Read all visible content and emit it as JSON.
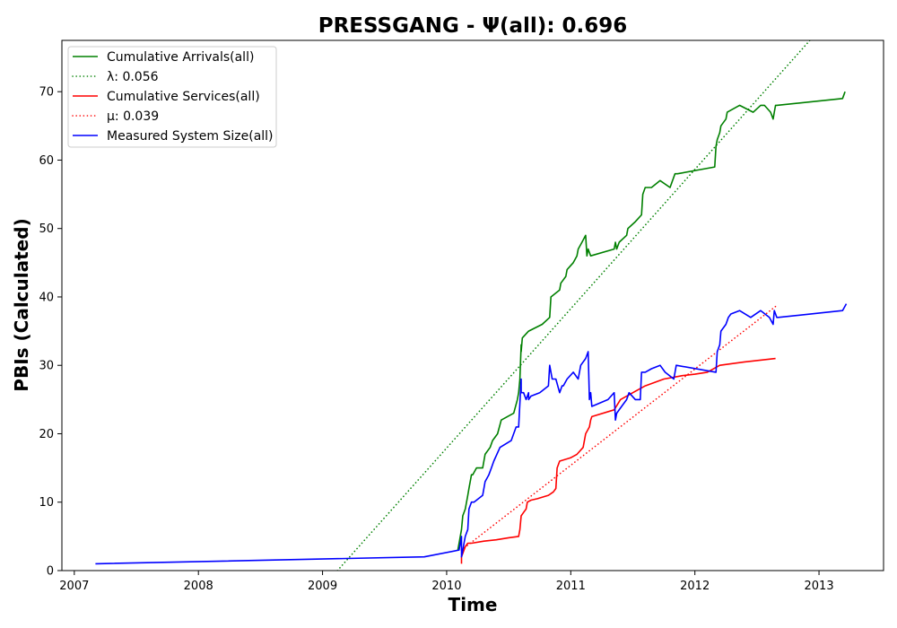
{
  "chart_data": {
    "type": "line",
    "title": "PRESSGANG -  Ψ(all): 0.696",
    "xlabel": "Time",
    "ylabel": "PBIs (Calculated)",
    "xlim": [
      2006.9,
      2013.52
    ],
    "ylim": [
      0,
      77.5
    ],
    "xticks": [
      2007,
      2008,
      2009,
      2010,
      2011,
      2012,
      2013
    ],
    "xtick_labels": [
      "2007",
      "2008",
      "2009",
      "2010",
      "2011",
      "2012",
      "2013"
    ],
    "yticks": [
      0,
      10,
      20,
      30,
      40,
      50,
      60,
      70
    ],
    "ytick_labels": [
      "0",
      "10",
      "20",
      "30",
      "40",
      "50",
      "60",
      "70"
    ],
    "grid": false,
    "legend_position": "upper-left",
    "series": [
      {
        "name": "Cumulative Arrivals(all)",
        "color": "#008000",
        "style": "solid",
        "x": [
          2010.09,
          2010.1,
          2010.12,
          2010.13,
          2010.15,
          2010.17,
          2010.18,
          2010.2,
          2010.21,
          2010.24,
          2010.29,
          2010.31,
          2010.35,
          2010.37,
          2010.41,
          2010.44,
          2010.54,
          2010.57,
          2010.58,
          2010.59,
          2010.6,
          2010.6,
          2010.61,
          2010.66,
          2010.77,
          2010.83,
          2010.84,
          2010.91,
          2010.92,
          2010.96,
          2010.97,
          2011.02,
          2011.05,
          2011.06,
          2011.09,
          2011.12,
          2011.13,
          2011.14,
          2011.16,
          2011.35,
          2011.36,
          2011.37,
          2011.39,
          2011.45,
          2011.46,
          2011.52,
          2011.57,
          2011.58,
          2011.6,
          2011.65,
          2011.72,
          2011.8,
          2011.84,
          2011.86,
          2012.16,
          2012.17,
          2012.18,
          2012.2,
          2012.21,
          2012.25,
          2012.26,
          2012.36,
          2012.47,
          2012.53,
          2012.56,
          2012.61,
          2012.63,
          2012.64,
          2012.65,
          2012.66,
          2013.19,
          2013.21
        ],
        "y": [
          3,
          4,
          6,
          8,
          9,
          11,
          12,
          14,
          14,
          15,
          15,
          17,
          18,
          19,
          20,
          22,
          23,
          25,
          26,
          28,
          33,
          32,
          34,
          35,
          36,
          37,
          40,
          41,
          42,
          43,
          44,
          45,
          46,
          47,
          48,
          49,
          46,
          47,
          46,
          47,
          48,
          47,
          48,
          49,
          50,
          51,
          52,
          55,
          56,
          56,
          57,
          56,
          58,
          58,
          59,
          62,
          63,
          64,
          65,
          66,
          67,
          68,
          67,
          68,
          68,
          67,
          66,
          67,
          68,
          68,
          69,
          70
        ]
      },
      {
        "name": "λ: 0.056",
        "color": "#008000",
        "style": "dotted",
        "x": [
          2009.12,
          2013.0
        ],
        "y": [
          0,
          79
        ]
      },
      {
        "name": "Cumulative Services(all)",
        "color": "#ff0000",
        "style": "solid",
        "x": [
          2010.12,
          2010.12,
          2010.14,
          2010.15,
          2010.17,
          2010.2,
          2010.3,
          2010.4,
          2010.5,
          2010.58,
          2010.59,
          2010.6,
          2010.62,
          2010.64,
          2010.65,
          2010.68,
          2010.73,
          2010.82,
          2010.86,
          2010.88,
          2010.89,
          2010.91,
          2011.0,
          2011.05,
          2011.1,
          2011.12,
          2011.15,
          2011.16,
          2011.17,
          2011.35,
          2011.4,
          2011.5,
          2011.6,
          2011.75,
          2011.9,
          2012.0,
          2012.1,
          2012.2,
          2012.4,
          2012.65
        ],
        "y": [
          1,
          2,
          3,
          3.5,
          4,
          4,
          4.3,
          4.5,
          4.8,
          5,
          6,
          8,
          8.5,
          9,
          10,
          10.3,
          10.5,
          11,
          11.5,
          12,
          15,
          16,
          16.5,
          17,
          18,
          20,
          21,
          22,
          22.5,
          23.5,
          25,
          26,
          27,
          28,
          28.5,
          28.7,
          29,
          30,
          30.5,
          31
        ]
      },
      {
        "name": "μ: 0.039",
        "color": "#ff0000",
        "style": "dotted",
        "x": [
          2010.12,
          2012.65
        ],
        "y": [
          3,
          38.6
        ]
      },
      {
        "name": "Measured System Size(all)",
        "color": "#0000ff",
        "style": "solid",
        "x": [
          2007.17,
          2009.82,
          2010.1,
          2010.11,
          2010.12,
          2010.12,
          2010.13,
          2010.15,
          2010.17,
          2010.18,
          2010.2,
          2010.22,
          2010.29,
          2010.31,
          2010.34,
          2010.36,
          2010.38,
          2010.43,
          2010.52,
          2010.56,
          2010.58,
          2010.6,
          2010.6,
          2010.61,
          2010.62,
          2010.64,
          2010.66,
          2010.66,
          2010.68,
          2010.75,
          2010.82,
          2010.83,
          2010.85,
          2010.88,
          2010.91,
          2010.93,
          2010.94,
          2010.97,
          2011.02,
          2011.06,
          2011.08,
          2011.12,
          2011.14,
          2011.15,
          2011.16,
          2011.17,
          2011.3,
          2011.35,
          2011.36,
          2011.37,
          2011.41,
          2011.45,
          2011.47,
          2011.52,
          2011.56,
          2011.57,
          2011.6,
          2011.65,
          2011.72,
          2011.76,
          2011.83,
          2011.85,
          2012.17,
          2012.18,
          2012.2,
          2012.21,
          2012.25,
          2012.27,
          2012.29,
          2012.36,
          2012.45,
          2012.53,
          2012.6,
          2012.63,
          2012.64,
          2012.66,
          2012.67,
          2013.19,
          2013.22
        ],
        "y": [
          1,
          2,
          3,
          4,
          5,
          2,
          3,
          5,
          6,
          9,
          10,
          10,
          11,
          13,
          14,
          15,
          16,
          18,
          19,
          21,
          21,
          28,
          26,
          26,
          26,
          25,
          26,
          25,
          25.5,
          26,
          27,
          30,
          28,
          28,
          26,
          27,
          27,
          28,
          29,
          28,
          30,
          31,
          32,
          25,
          26,
          24,
          25,
          26,
          22,
          23,
          24,
          25,
          26,
          25,
          25,
          29,
          29,
          29.5,
          30,
          29,
          28,
          30,
          29,
          32,
          33,
          35,
          36,
          37,
          37.5,
          38,
          37,
          38,
          37,
          36,
          38,
          37,
          37,
          38,
          39
        ]
      }
    ]
  }
}
